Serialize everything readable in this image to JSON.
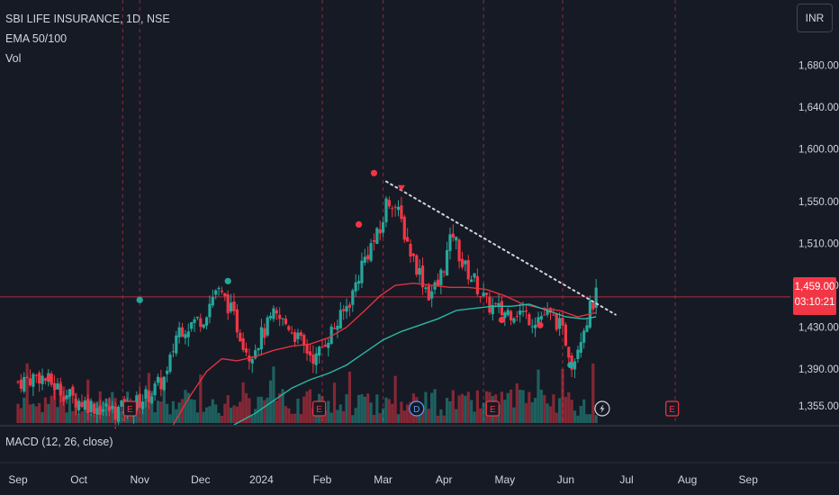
{
  "legend": {
    "symbol": "SBI LIFE INSURANCE, 1D, NSE",
    "ema": "EMA 50/100",
    "vol": "Vol"
  },
  "macd_label": "MACD (12, 26, close)",
  "currency": "INR",
  "price_badge": {
    "price": "1,459.00",
    "countdown": "03:10:21"
  },
  "colors": {
    "background": "#161a25",
    "up": "#26a69a",
    "down": "#f23645",
    "ema50": "#e2323f",
    "ema100": "#2bb8a6",
    "trendline": "#d1d4dc",
    "separator": "#f23645"
  },
  "icons": {
    "earnings": "earnings-flag-icon",
    "dividend": "dividend-flag-icon",
    "split": "lightning-icon"
  },
  "chart_data": {
    "type": "candlestick",
    "y_axis": {
      "ylim": [
        1337,
        1730
      ],
      "ticks": [
        1355,
        1390,
        1430,
        1470,
        1510,
        1550,
        1600,
        1640,
        1680
      ],
      "tick_labels": [
        "1,355.00",
        "1,390.00",
        "1,430.00",
        "1,470.00",
        "1,510.00",
        "1,550.00",
        "1,600.00",
        "1,640.00",
        "1,680.00"
      ]
    },
    "x_axis": {
      "labels": [
        "Sep",
        "Oct",
        "Nov",
        "Dec",
        "2024",
        "Feb",
        "Mar",
        "Apr",
        "May",
        "Jun",
        "Jul",
        "Aug",
        "Sep"
      ],
      "month_index": [
        0,
        1,
        2,
        3,
        4,
        5,
        6,
        7,
        8,
        9,
        10,
        11,
        12
      ]
    },
    "last_price": 1459,
    "last_price_label": "1,459.00",
    "countdown": "03:10:21",
    "session_breaks": [
      1.72,
      2.0,
      5.0,
      6.0,
      7.65,
      8.95,
      10.8
    ],
    "price_path": [
      {
        "m": 0.0,
        "p": 1378
      },
      {
        "m": 0.35,
        "p": 1384
      },
      {
        "m": 0.6,
        "p": 1374
      },
      {
        "m": 0.9,
        "p": 1362
      },
      {
        "m": 1.3,
        "p": 1354
      },
      {
        "m": 1.6,
        "p": 1350
      },
      {
        "m": 1.9,
        "p": 1356
      },
      {
        "m": 2.2,
        "p": 1368
      },
      {
        "m": 2.45,
        "p": 1384
      },
      {
        "m": 2.62,
        "p": 1428
      },
      {
        "m": 2.8,
        "p": 1432
      },
      {
        "m": 3.05,
        "p": 1440
      },
      {
        "m": 3.25,
        "p": 1466
      },
      {
        "m": 3.45,
        "p": 1452
      },
      {
        "m": 3.65,
        "p": 1424
      },
      {
        "m": 3.8,
        "p": 1404
      },
      {
        "m": 4.0,
        "p": 1422
      },
      {
        "m": 4.2,
        "p": 1440
      },
      {
        "m": 4.45,
        "p": 1432
      },
      {
        "m": 4.7,
        "p": 1410
      },
      {
        "m": 4.9,
        "p": 1400
      },
      {
        "m": 5.05,
        "p": 1418
      },
      {
        "m": 5.3,
        "p": 1438
      },
      {
        "m": 5.5,
        "p": 1462
      },
      {
        "m": 5.65,
        "p": 1490
      },
      {
        "m": 5.8,
        "p": 1508
      },
      {
        "m": 5.95,
        "p": 1520
      },
      {
        "m": 6.05,
        "p": 1548
      },
      {
        "m": 6.15,
        "p": 1552
      },
      {
        "m": 6.3,
        "p": 1530
      },
      {
        "m": 6.45,
        "p": 1502
      },
      {
        "m": 6.6,
        "p": 1482
      },
      {
        "m": 6.75,
        "p": 1462
      },
      {
        "m": 6.9,
        "p": 1470
      },
      {
        "m": 7.05,
        "p": 1500
      },
      {
        "m": 7.15,
        "p": 1520
      },
      {
        "m": 7.3,
        "p": 1490
      },
      {
        "m": 7.5,
        "p": 1474
      },
      {
        "m": 7.7,
        "p": 1452
      },
      {
        "m": 7.95,
        "p": 1444
      },
      {
        "m": 8.2,
        "p": 1446
      },
      {
        "m": 8.45,
        "p": 1438
      },
      {
        "m": 8.65,
        "p": 1442
      },
      {
        "m": 8.85,
        "p": 1436
      },
      {
        "m": 9.0,
        "p": 1418
      },
      {
        "m": 9.12,
        "p": 1394
      },
      {
        "m": 9.22,
        "p": 1420
      },
      {
        "m": 9.32,
        "p": 1434
      },
      {
        "m": 9.42,
        "p": 1450
      },
      {
        "m": 9.5,
        "p": 1459
      }
    ],
    "ema50": [
      {
        "m": 2.55,
        "p": 1337
      },
      {
        "m": 2.8,
        "p": 1362
      },
      {
        "m": 3.1,
        "p": 1388
      },
      {
        "m": 3.35,
        "p": 1400
      },
      {
        "m": 3.6,
        "p": 1398
      },
      {
        "m": 3.9,
        "p": 1402
      },
      {
        "m": 4.2,
        "p": 1408
      },
      {
        "m": 4.5,
        "p": 1412
      },
      {
        "m": 4.8,
        "p": 1414
      },
      {
        "m": 5.1,
        "p": 1420
      },
      {
        "m": 5.4,
        "p": 1430
      },
      {
        "m": 5.7,
        "p": 1446
      },
      {
        "m": 5.95,
        "p": 1460
      },
      {
        "m": 6.2,
        "p": 1470
      },
      {
        "m": 6.5,
        "p": 1472
      },
      {
        "m": 6.8,
        "p": 1470
      },
      {
        "m": 7.1,
        "p": 1468
      },
      {
        "m": 7.4,
        "p": 1468
      },
      {
        "m": 7.7,
        "p": 1466
      },
      {
        "m": 8.0,
        "p": 1460
      },
      {
        "m": 8.3,
        "p": 1452
      },
      {
        "m": 8.6,
        "p": 1448
      },
      {
        "m": 8.9,
        "p": 1446
      },
      {
        "m": 9.2,
        "p": 1440
      },
      {
        "m": 9.5,
        "p": 1444
      }
    ],
    "ema100": [
      {
        "m": 3.55,
        "p": 1337
      },
      {
        "m": 3.9,
        "p": 1348
      },
      {
        "m": 4.2,
        "p": 1360
      },
      {
        "m": 4.5,
        "p": 1372
      },
      {
        "m": 4.8,
        "p": 1380
      },
      {
        "m": 5.1,
        "p": 1386
      },
      {
        "m": 5.4,
        "p": 1394
      },
      {
        "m": 5.7,
        "p": 1406
      },
      {
        "m": 6.0,
        "p": 1418
      },
      {
        "m": 6.3,
        "p": 1426
      },
      {
        "m": 6.6,
        "p": 1432
      },
      {
        "m": 6.9,
        "p": 1438
      },
      {
        "m": 7.2,
        "p": 1446
      },
      {
        "m": 7.5,
        "p": 1448
      },
      {
        "m": 7.8,
        "p": 1450
      },
      {
        "m": 8.1,
        "p": 1450
      },
      {
        "m": 8.4,
        "p": 1452
      },
      {
        "m": 8.7,
        "p": 1446
      },
      {
        "m": 9.0,
        "p": 1440
      },
      {
        "m": 9.3,
        "p": 1438
      },
      {
        "m": 9.5,
        "p": 1440
      }
    ],
    "trendline": {
      "from": {
        "m": 6.05,
        "p": 1569
      },
      "to": {
        "m": 9.82,
        "p": 1442
      }
    },
    "signals": [
      {
        "m": 0.52,
        "p": 1382,
        "color": "#f23645"
      },
      {
        "m": 2.0,
        "p": 1456,
        "color": "#26a69a"
      },
      {
        "m": 3.45,
        "p": 1474,
        "color": "#26a69a"
      },
      {
        "m": 5.6,
        "p": 1528,
        "color": "#f23645"
      },
      {
        "m": 5.85,
        "p": 1577,
        "color": "#f23645"
      },
      {
        "m": 7.95,
        "p": 1437,
        "color": "#f23645"
      },
      {
        "m": 8.58,
        "p": 1432,
        "color": "#f23645"
      },
      {
        "m": 9.08,
        "p": 1394,
        "color": "#26a69a"
      }
    ],
    "sell_marker": {
      "m": 6.3,
      "p": 1562,
      "color": "#f23645"
    },
    "event_markers": [
      {
        "m": 1.84,
        "kind": "E",
        "label": "E",
        "color": "#f23645"
      },
      {
        "m": 4.95,
        "kind": "E",
        "label": "E",
        "color": "#f23645"
      },
      {
        "m": 6.55,
        "kind": "D",
        "label": "D",
        "color": "#5b9cf6"
      },
      {
        "m": 7.8,
        "kind": "E",
        "label": "E",
        "color": "#f23645"
      },
      {
        "m": 9.6,
        "kind": "split",
        "label": "",
        "color": "#d1d4dc"
      },
      {
        "m": 10.75,
        "kind": "E",
        "label": "E",
        "color": "#f23645"
      }
    ]
  }
}
